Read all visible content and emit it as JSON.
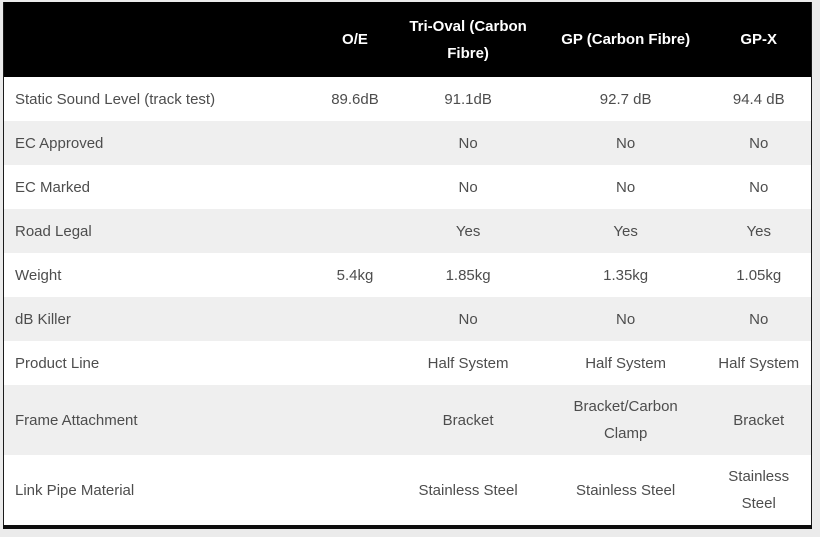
{
  "colors": {
    "header_bg": "#000000",
    "header_text": "#ffffff",
    "row_bg": "#ffffff",
    "row_alt_bg": "#efefef",
    "body_text": "#4d4d4d",
    "page_bg": "#ebebeb",
    "border": "#0d0d0d"
  },
  "table": {
    "columns": [
      "",
      "O/E",
      "Tri-Oval (Carbon Fibre)",
      "GP (Carbon Fibre)",
      "GP-X"
    ],
    "rows": [
      {
        "label": "Static Sound Level (track test)",
        "values": [
          "89.6dB",
          "91.1dB",
          "92.7 dB",
          "94.4 dB"
        ]
      },
      {
        "label": "EC Approved",
        "values": [
          "",
          "No",
          "No",
          "No"
        ]
      },
      {
        "label": "EC Marked",
        "values": [
          "",
          "No",
          "No",
          "No"
        ]
      },
      {
        "label": "Road Legal",
        "values": [
          "",
          "Yes",
          "Yes",
          "Yes"
        ]
      },
      {
        "label": "Weight",
        "values": [
          "5.4kg",
          "1.85kg",
          "1.35kg",
          "1.05kg"
        ]
      },
      {
        "label": "dB Killer",
        "values": [
          "",
          "No",
          "No",
          "No"
        ]
      },
      {
        "label": "Product Line",
        "values": [
          "",
          "Half System",
          "Half System",
          "Half System"
        ]
      },
      {
        "label": "Frame Attachment",
        "values": [
          "",
          "Bracket",
          "Bracket/Carbon Clamp",
          "Bracket"
        ]
      },
      {
        "label": "Link Pipe Material",
        "values": [
          "",
          "Stainless Steel",
          "Stainless Steel",
          "Stainless Steel"
        ]
      }
    ]
  }
}
